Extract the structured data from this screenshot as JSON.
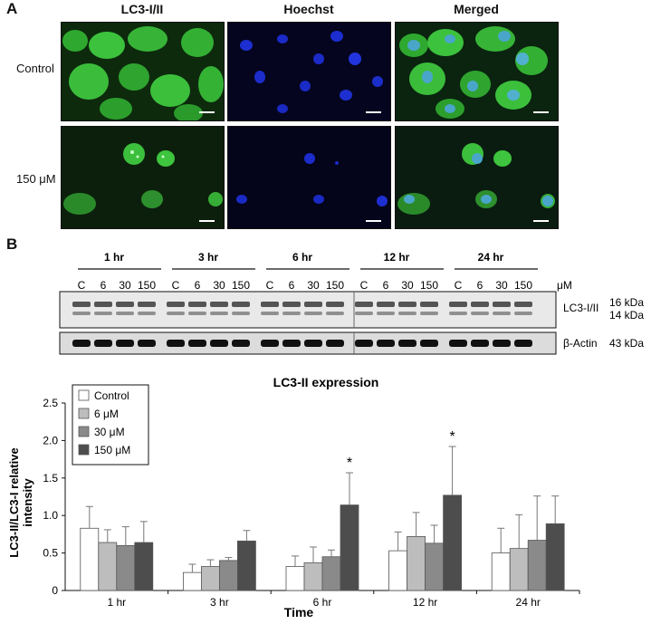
{
  "panel_a": {
    "letter": "A",
    "columns": [
      "LC3-I/II",
      "Hoechst",
      "Merged"
    ],
    "rows": [
      "Control",
      "150 μM"
    ]
  },
  "panel_b": {
    "letter": "B",
    "time_groups": [
      "1 hr",
      "3 hr",
      "6 hr",
      "12 hr",
      "24 hr"
    ],
    "lane_labels": [
      "C",
      "6",
      "30",
      "150",
      "C",
      "6",
      "30",
      "150",
      "C",
      "6",
      "30",
      "150",
      "C",
      "6",
      "30",
      "150",
      "C",
      "6",
      "30",
      "150"
    ],
    "unit": "μM",
    "blot1_label": "LC3-I/II",
    "blot1_kda": [
      "16 kDa",
      "14 kDa"
    ],
    "blot2_label": "β-Actin",
    "blot2_kda": "43 kDa"
  },
  "chart_data": {
    "type": "bar",
    "title": "LC3-II expression",
    "xlabel": "Time",
    "ylabel": "LC3-II/LC3-I relative intensity",
    "ylim": [
      0,
      2.5
    ],
    "yticks": [
      "0",
      "0.5",
      "1.0",
      "1.5",
      "2.0",
      "2.5"
    ],
    "categories": [
      "1 hr",
      "3 hr",
      "6 hr",
      "12 hr",
      "24 hr"
    ],
    "legend_position": "top-left",
    "series": [
      {
        "name": "Control",
        "color": "#ffffff",
        "values": [
          0.83,
          0.24,
          0.32,
          0.53,
          0.5
        ],
        "errors": [
          0.29,
          0.11,
          0.14,
          0.25,
          0.33
        ]
      },
      {
        "name": "6 μM",
        "color": "#bdbdbd",
        "values": [
          0.64,
          0.32,
          0.37,
          0.72,
          0.56
        ],
        "errors": [
          0.17,
          0.09,
          0.21,
          0.32,
          0.45
        ]
      },
      {
        "name": "30 μM",
        "color": "#8a8a8a",
        "values": [
          0.6,
          0.4,
          0.45,
          0.63,
          0.67
        ],
        "errors": [
          0.25,
          0.04,
          0.09,
          0.24,
          0.59
        ]
      },
      {
        "name": "150 μM",
        "color": "#4d4d4d",
        "values": [
          0.64,
          0.66,
          1.14,
          1.27,
          0.89
        ],
        "errors": [
          0.28,
          0.14,
          0.43,
          0.65,
          0.37
        ]
      }
    ],
    "annotations": [
      {
        "text": "*",
        "category": "6 hr",
        "series": "150 μM"
      },
      {
        "text": "*",
        "category": "12 hr",
        "series": "150 μM"
      }
    ]
  }
}
